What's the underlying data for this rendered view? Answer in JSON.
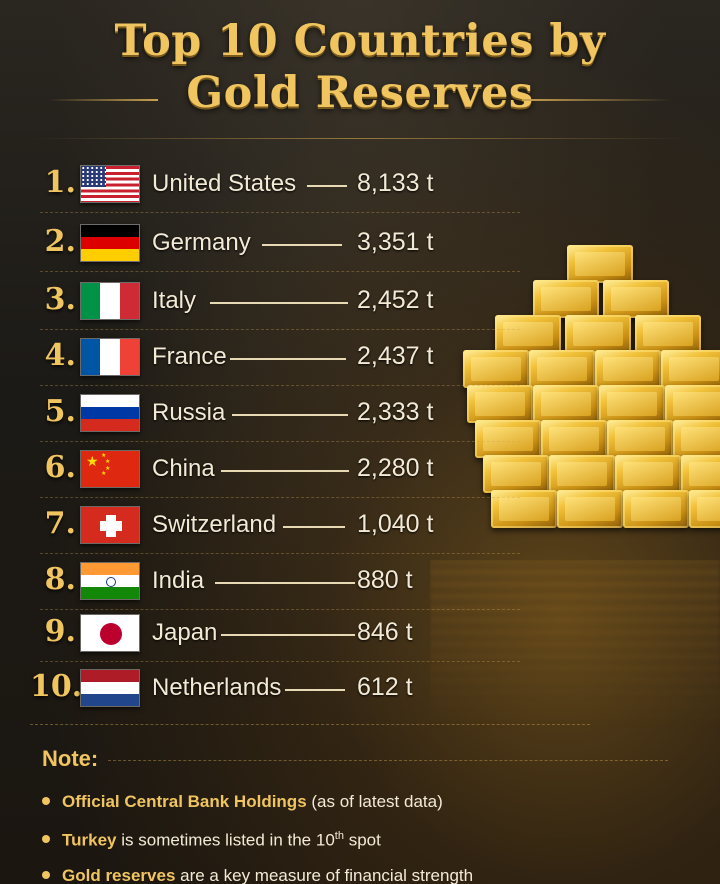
{
  "title": {
    "line1": "Top 10 Countries by",
    "line2": "Gold Reserves"
  },
  "countries": [
    {
      "rank": "1.",
      "name": "United States",
      "amount": "8,133 t",
      "flag": "us-flag-icon"
    },
    {
      "rank": "2.",
      "name": "Germany",
      "amount": "3,351 t",
      "flag": "germany-flag-icon"
    },
    {
      "rank": "3.",
      "name": "Italy",
      "amount": "2,452 t",
      "flag": "italy-flag-icon"
    },
    {
      "rank": "4.",
      "name": "France",
      "amount": "2,437 t",
      "flag": "france-flag-icon"
    },
    {
      "rank": "5.",
      "name": "Russia",
      "amount": "2,333 t",
      "flag": "russia-flag-icon"
    },
    {
      "rank": "6.",
      "name": "China",
      "amount": "2,280 t",
      "flag": "china-flag-icon"
    },
    {
      "rank": "7.",
      "name": "Switzerland",
      "amount": "1,040 t",
      "flag": "switzerland-flag-icon"
    },
    {
      "rank": "8.",
      "name": "India",
      "amount": "880 t",
      "flag": "india-flag-icon"
    },
    {
      "rank": "9.",
      "name": "Japan",
      "amount": "846 t",
      "flag": "japan-flag-icon"
    },
    {
      "rank": "10.",
      "name": "Netherlands",
      "amount": "612 t",
      "flag": "netherlands-flag-icon"
    }
  ],
  "note": {
    "title": "Note:",
    "bullets": [
      {
        "highlight": "Official Central Bank Holdings",
        "rest": "(as of latest data)"
      },
      {
        "highlight": "Turkey",
        "rest_before_sup": "is sometimes listed in the 10",
        "sup": "th",
        "rest_after_sup": "spot"
      },
      {
        "highlight": "Gold reserves",
        "rest": "are a key measure of financial strength"
      }
    ]
  },
  "colors": {
    "accent_gold": "#f0c560",
    "text_cream": "#f3ead6",
    "background": "#1c1a16"
  },
  "icons": {
    "decoration": "gold-bars-stack"
  }
}
